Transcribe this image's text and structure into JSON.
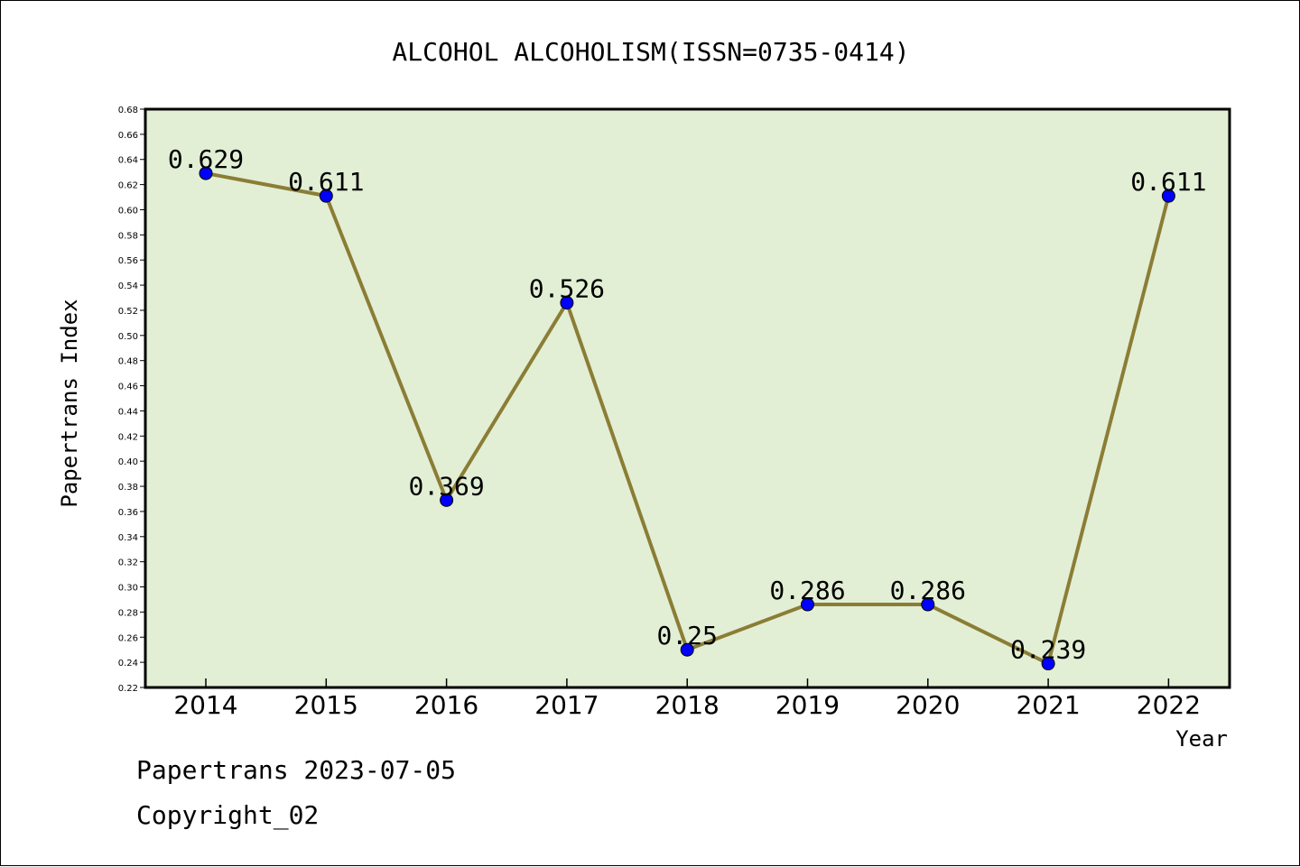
{
  "chart_data": {
    "type": "line",
    "title": "ALCOHOL ALCOHOLISM(ISSN=0735-0414)",
    "xlabel": "Year",
    "ylabel": "Papertrans Index",
    "categories": [
      "2014",
      "2015",
      "2016",
      "2017",
      "2018",
      "2019",
      "2020",
      "2021",
      "2022"
    ],
    "series": [
      {
        "values": [
          0.629,
          0.611,
          0.369,
          0.526,
          0.25,
          0.286,
          0.286,
          0.239,
          0.611
        ],
        "labels": [
          "0.629",
          "0.611",
          "0.369",
          "0.526",
          "0.25",
          "0.286",
          "0.286",
          "0.239",
          "0.611"
        ]
      }
    ],
    "ylim": [
      0.22,
      0.68
    ],
    "yticks": [
      "0.22",
      "0.24",
      "0.26",
      "0.28",
      "0.30",
      "0.32",
      "0.34",
      "0.36",
      "0.38",
      "0.40",
      "0.42",
      "0.44",
      "0.46",
      "0.48",
      "0.50",
      "0.52",
      "0.54",
      "0.56",
      "0.58",
      "0.60",
      "0.62",
      "0.64",
      "0.66",
      "0.68"
    ],
    "grid": false,
    "legend": "none",
    "colors": {
      "plot_background": "#e2efd5",
      "line": "#8b7d35",
      "marker": "#0000ff",
      "axis": "#000000"
    }
  },
  "footer": {
    "date_text": "Papertrans 2023-07-05",
    "copyright_text": "Copyright_02"
  }
}
